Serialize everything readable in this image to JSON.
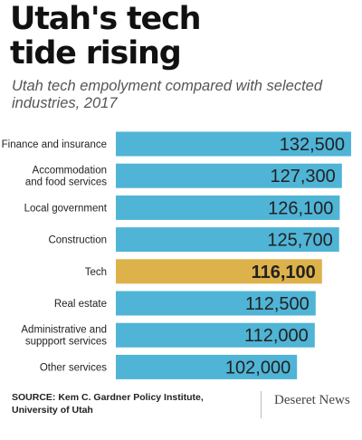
{
  "header": {
    "title_line1": "Utah's tech",
    "title_line2": "tide rising",
    "subtitle_line1": "Utah tech empolyment compared with selected",
    "subtitle_line2": "industries, 2017"
  },
  "chart_data": {
    "type": "bar",
    "orientation": "horizontal",
    "categories": [
      [
        "Finance and insurance"
      ],
      [
        "Accommodation",
        "and food services"
      ],
      [
        "Local government"
      ],
      [
        "Construction"
      ],
      [
        "Tech"
      ],
      [
        "Real estate"
      ],
      [
        "Administrative and",
        "suppport services"
      ],
      [
        "Other services"
      ]
    ],
    "values": [
      132500,
      127300,
      126100,
      125700,
      116100,
      112500,
      112000,
      102000
    ],
    "value_labels": [
      "132,500",
      "127,300",
      "126,100",
      "125,700",
      "116,100",
      "112,500",
      "112,000",
      "102,000"
    ],
    "highlight": "Tech",
    "colors": {
      "bar": "#4fb4d6",
      "highlight": "#deb24a"
    },
    "xlim": [
      0,
      132500
    ],
    "grid": false,
    "axes_visible": false
  },
  "footer": {
    "source_line1": "SOURCE: Kem C. Gardner Policy Institute,",
    "source_line2": "University of Utah",
    "credit": "Deseret News"
  }
}
